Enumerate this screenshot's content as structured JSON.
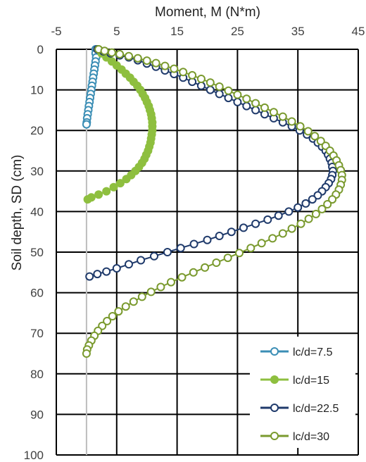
{
  "chart_data": {
    "type": "scatter",
    "title": "",
    "xlabel": "Moment, M (N*m)",
    "ylabel": "Soil depth, SD (cm)",
    "x_axis_position": "top",
    "y_axis_inverted": true,
    "xlim": [
      -5,
      45
    ],
    "ylim": [
      0,
      100
    ],
    "x_ticks": [
      -5,
      5,
      15,
      25,
      35,
      45
    ],
    "y_ticks": [
      0,
      10,
      20,
      30,
      40,
      50,
      60,
      70,
      80,
      90,
      100
    ],
    "grid": "major gridlines on both axes",
    "legend_position": "bottom-right",
    "series": [
      {
        "name": "lc/d=7.5",
        "color": "#3b8eb5",
        "marker": "open-circle",
        "points": [
          [
            1.5,
            0
          ],
          [
            1.5,
            1
          ],
          [
            1.6,
            2
          ],
          [
            1.5,
            3
          ],
          [
            1.4,
            4
          ],
          [
            1.3,
            5
          ],
          [
            1.2,
            6
          ],
          [
            1.1,
            7
          ],
          [
            1.0,
            8
          ],
          [
            0.9,
            9
          ],
          [
            0.8,
            10
          ],
          [
            0.7,
            11
          ],
          [
            0.6,
            12
          ],
          [
            0.5,
            13
          ],
          [
            0.4,
            14
          ],
          [
            0.3,
            15
          ],
          [
            0.2,
            16
          ],
          [
            0.1,
            17
          ],
          [
            0.05,
            18
          ],
          [
            0,
            18.5
          ]
        ]
      },
      {
        "name": "lc/d=15",
        "color": "#8ebf3f",
        "marker": "filled-circle",
        "points": [
          [
            2.0,
            0
          ],
          [
            2.5,
            1
          ],
          [
            3.3,
            2
          ],
          [
            4.2,
            3
          ],
          [
            5.0,
            4
          ],
          [
            5.8,
            5
          ],
          [
            6.5,
            6
          ],
          [
            7.2,
            7
          ],
          [
            7.8,
            8
          ],
          [
            8.4,
            9
          ],
          [
            8.9,
            10
          ],
          [
            9.3,
            11
          ],
          [
            9.7,
            12
          ],
          [
            10.0,
            13
          ],
          [
            10.3,
            14
          ],
          [
            10.5,
            15
          ],
          [
            10.7,
            16
          ],
          [
            10.8,
            17
          ],
          [
            10.9,
            18
          ],
          [
            10.9,
            19
          ],
          [
            10.9,
            20
          ],
          [
            10.8,
            21
          ],
          [
            10.7,
            22
          ],
          [
            10.6,
            23
          ],
          [
            10.4,
            24
          ],
          [
            10.2,
            25
          ],
          [
            9.9,
            26
          ],
          [
            9.6,
            27
          ],
          [
            9.2,
            28
          ],
          [
            8.7,
            29
          ],
          [
            8.1,
            30
          ],
          [
            7.4,
            31
          ],
          [
            6.6,
            32
          ],
          [
            5.6,
            33
          ],
          [
            4.5,
            34
          ],
          [
            3.3,
            35
          ],
          [
            2.0,
            35.8
          ],
          [
            0.8,
            36.5
          ],
          [
            0.2,
            37
          ]
        ]
      },
      {
        "name": "lc/d=22.5",
        "color": "#1f3a6b",
        "marker": "open-circle",
        "points": [
          [
            1.8,
            0
          ],
          [
            2.8,
            0.5
          ],
          [
            4.0,
            1
          ],
          [
            5.5,
            1.5
          ],
          [
            7.0,
            2
          ],
          [
            8.5,
            2.7
          ],
          [
            10.0,
            3.5
          ],
          [
            11.5,
            4.3
          ],
          [
            13.0,
            5.2
          ],
          [
            14.5,
            6.1
          ],
          [
            16.0,
            7.0
          ],
          [
            17.5,
            8.0
          ],
          [
            19.0,
            9.0
          ],
          [
            20.5,
            10.0
          ],
          [
            22.0,
            11.0
          ],
          [
            23.5,
            12.0
          ],
          [
            25.0,
            13.0
          ],
          [
            26.5,
            14.0
          ],
          [
            28.0,
            15.0
          ],
          [
            29.5,
            16.0
          ],
          [
            31.0,
            17.0
          ],
          [
            32.5,
            18.0
          ],
          [
            34.0,
            19.0
          ],
          [
            35.3,
            20.0
          ],
          [
            36.5,
            21.0
          ],
          [
            37.5,
            22.0
          ],
          [
            38.3,
            23.0
          ],
          [
            39.0,
            24.0
          ],
          [
            39.6,
            25.0
          ],
          [
            40.0,
            26.0
          ],
          [
            40.3,
            27.0
          ],
          [
            40.6,
            28.0
          ],
          [
            40.7,
            29.0
          ],
          [
            40.8,
            30.0
          ],
          [
            40.7,
            31.0
          ],
          [
            40.5,
            32.0
          ],
          [
            40.1,
            33.0
          ],
          [
            39.6,
            34.0
          ],
          [
            39.0,
            35.0
          ],
          [
            38.3,
            36.0
          ],
          [
            37.4,
            37.0
          ],
          [
            36.3,
            38.0
          ],
          [
            35.0,
            39.0
          ],
          [
            33.5,
            40.0
          ],
          [
            31.8,
            41.0
          ],
          [
            30.0,
            42.0
          ],
          [
            28.0,
            43.0
          ],
          [
            26.0,
            44.0
          ],
          [
            24.0,
            45.0
          ],
          [
            22.0,
            46.0
          ],
          [
            20.0,
            47.0
          ],
          [
            17.8,
            48.0
          ],
          [
            15.6,
            49.0
          ],
          [
            13.4,
            50.0
          ],
          [
            11.2,
            51.0
          ],
          [
            9.0,
            52.0
          ],
          [
            7.0,
            53.0
          ],
          [
            5.0,
            54.0
          ],
          [
            3.3,
            54.8
          ],
          [
            1.8,
            55.4
          ],
          [
            0.5,
            56.0
          ]
        ]
      },
      {
        "name": "lc/d=30",
        "color": "#7a9a2e",
        "marker": "open-circle",
        "points": [
          [
            2.0,
            0
          ],
          [
            3.0,
            0.4
          ],
          [
            4.2,
            0.8
          ],
          [
            5.5,
            1.2
          ],
          [
            7.0,
            1.7
          ],
          [
            8.5,
            2.2
          ],
          [
            10.0,
            2.8
          ],
          [
            11.5,
            3.4
          ],
          [
            13.0,
            4.1
          ],
          [
            14.5,
            4.8
          ],
          [
            16.0,
            5.6
          ],
          [
            17.5,
            6.4
          ],
          [
            19.0,
            7.3
          ],
          [
            20.5,
            8.2
          ],
          [
            22.0,
            9.2
          ],
          [
            23.5,
            10.2
          ],
          [
            25.0,
            11.2
          ],
          [
            26.5,
            12.2
          ],
          [
            28.0,
            13.3
          ],
          [
            29.5,
            14.4
          ],
          [
            31.0,
            15.5
          ],
          [
            32.5,
            16.6
          ],
          [
            34.0,
            17.8
          ],
          [
            35.4,
            19.0
          ],
          [
            36.7,
            20.2
          ],
          [
            37.8,
            21.4
          ],
          [
            38.8,
            22.6
          ],
          [
            39.6,
            23.8
          ],
          [
            40.3,
            25.0
          ],
          [
            40.9,
            26.2
          ],
          [
            41.4,
            27.4
          ],
          [
            41.8,
            28.6
          ],
          [
            42.1,
            29.8
          ],
          [
            42.3,
            31.0
          ],
          [
            42.3,
            32.2
          ],
          [
            42.1,
            33.4
          ],
          [
            41.8,
            34.6
          ],
          [
            41.3,
            35.8
          ],
          [
            40.7,
            37.0
          ],
          [
            39.9,
            38.2
          ],
          [
            39.0,
            39.4
          ],
          [
            38.0,
            40.6
          ],
          [
            36.8,
            41.8
          ],
          [
            35.5,
            43.0
          ],
          [
            34.0,
            44.2
          ],
          [
            32.5,
            45.4
          ],
          [
            30.8,
            46.6
          ],
          [
            29.0,
            47.8
          ],
          [
            27.2,
            49.0
          ],
          [
            25.3,
            50.2
          ],
          [
            23.4,
            51.4
          ],
          [
            21.5,
            52.6
          ],
          [
            19.6,
            53.8
          ],
          [
            17.7,
            55.0
          ],
          [
            15.8,
            56.2
          ],
          [
            14.0,
            57.4
          ],
          [
            12.3,
            58.6
          ],
          [
            10.7,
            59.8
          ],
          [
            9.2,
            61.0
          ],
          [
            7.8,
            62.2
          ],
          [
            6.5,
            63.4
          ],
          [
            5.3,
            64.6
          ],
          [
            4.3,
            65.8
          ],
          [
            3.4,
            67.0
          ],
          [
            2.6,
            68.2
          ],
          [
            1.9,
            69.4
          ],
          [
            1.3,
            70.6
          ],
          [
            0.8,
            71.8
          ],
          [
            0.4,
            73.0
          ],
          [
            0.1,
            74.0
          ],
          [
            0,
            75.0
          ]
        ]
      }
    ]
  }
}
